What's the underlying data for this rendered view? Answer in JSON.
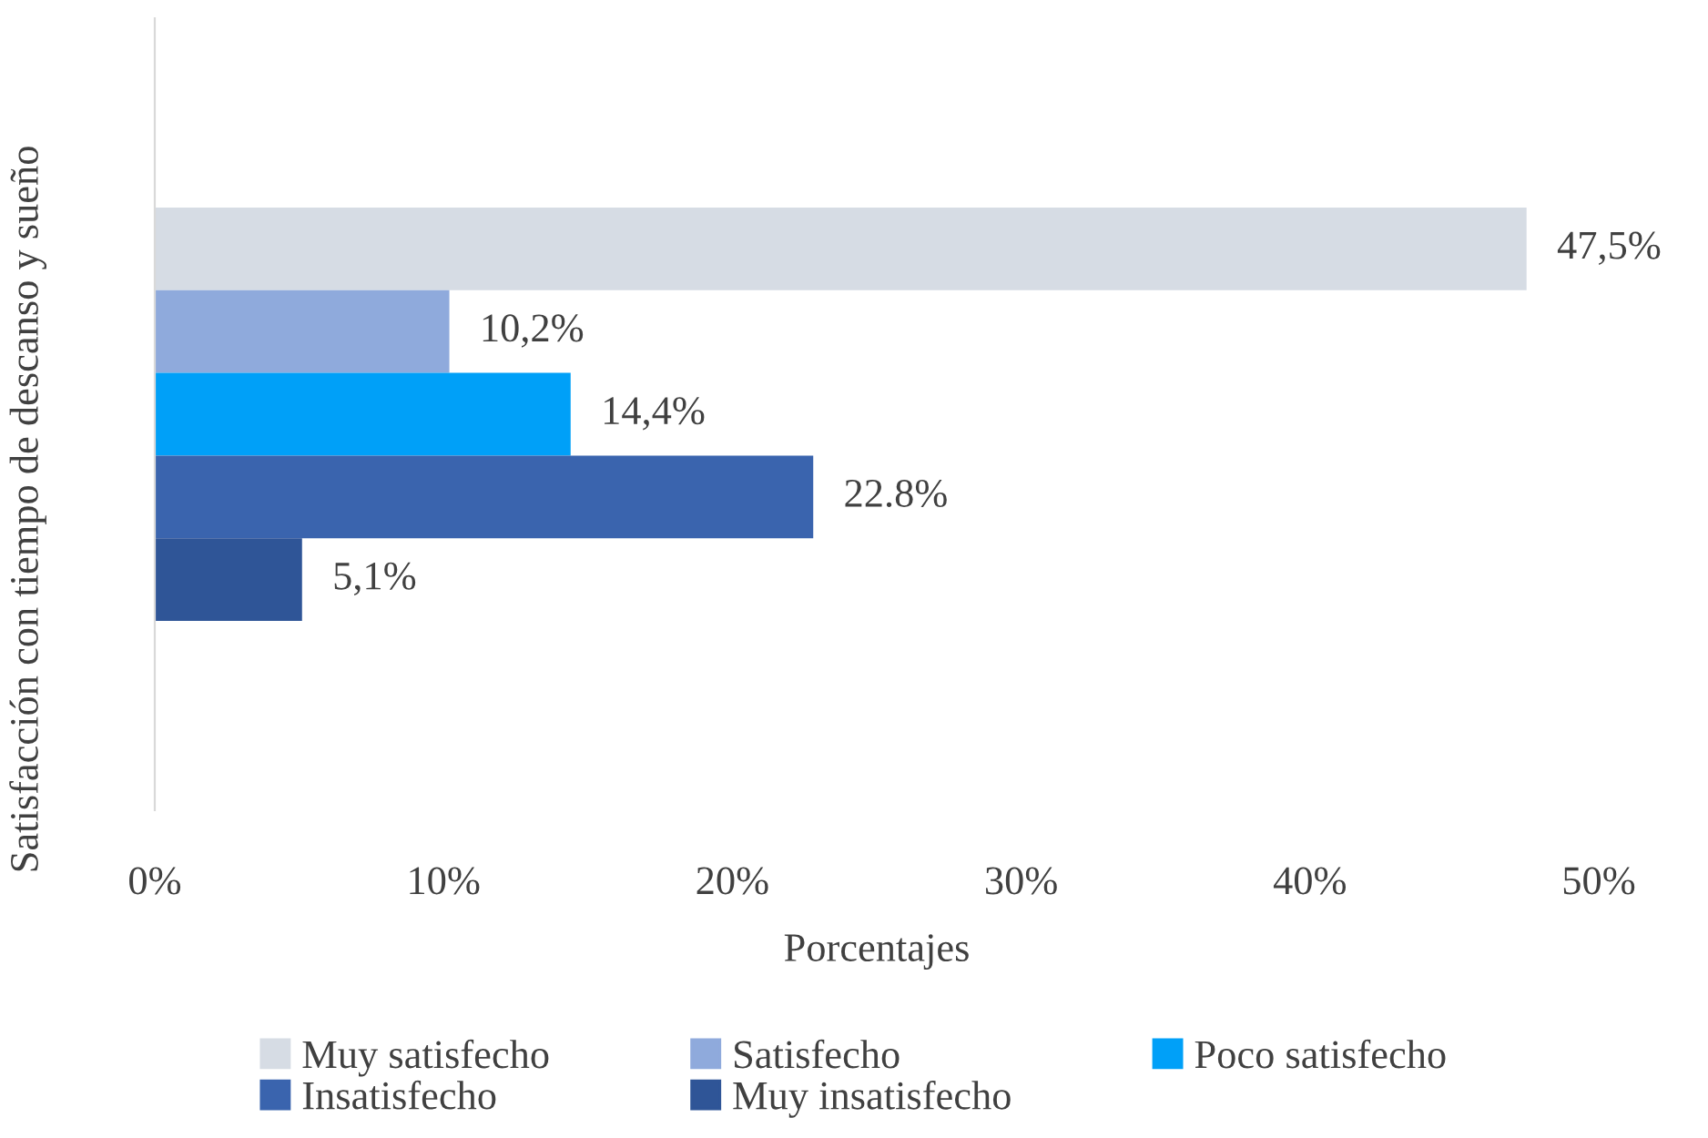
{
  "chart_data": {
    "type": "bar",
    "orientation": "horizontal",
    "ylabel": "Satisfacción con tiempo de descanso y sueño",
    "xlabel": "Porcentajes",
    "categories": [
      null
    ],
    "series": [
      {
        "name": "Muy satisfecho",
        "color": "#d6dce4",
        "values": [
          47.5
        ],
        "value_labels": [
          "47,5%"
        ]
      },
      {
        "name": "Satisfecho",
        "color": "#8faadc",
        "values": [
          10.2
        ],
        "value_labels": [
          "10,2%"
        ]
      },
      {
        "name": "Poco satisfecho",
        "color": "#00a0f8",
        "values": [
          14.4
        ],
        "value_labels": [
          "14,4%"
        ]
      },
      {
        "name": "Insatisfecho",
        "color": "#3a64ae",
        "values": [
          22.8
        ],
        "value_labels": [
          "22.8%"
        ]
      },
      {
        "name": "Muy insatisfecho",
        "color": "#2f5597",
        "values": [
          5.1
        ],
        "value_labels": [
          "5,1%"
        ]
      }
    ],
    "xlim": [
      0,
      50
    ],
    "xticks": [
      {
        "value": 0,
        "label": "0%"
      },
      {
        "value": 10,
        "label": "10%"
      },
      {
        "value": 20,
        "label": "20%"
      },
      {
        "value": 30,
        "label": "30%"
      },
      {
        "value": 40,
        "label": "40%"
      },
      {
        "value": 50,
        "label": "50%"
      }
    ],
    "grid": false,
    "legend": "bottom"
  }
}
